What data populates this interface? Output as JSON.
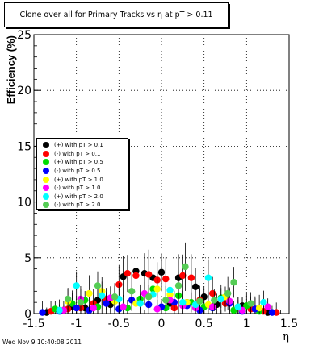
{
  "chart_data": {
    "type": "scatter",
    "title": "Clone  over all for Primary Tracks vs   η at pT > 0.11",
    "xlabel": "η",
    "ylabel": "Efficiency (%)",
    "xlim": [
      -1.5,
      1.5
    ],
    "ylim": [
      0,
      25
    ],
    "xticks": [
      "-1.5",
      "-1",
      "-0.5",
      "0",
      "0.5",
      "1",
      "1.5"
    ],
    "yticks": [
      "0",
      "5",
      "10",
      "15",
      "20",
      "25"
    ],
    "grid": true,
    "legend_position": "left",
    "series": [
      {
        "name": "(+) with pT > 0.1",
        "color": "#000000",
        "x": [
          -1.35,
          -1.15,
          -1.05,
          -0.9,
          -0.75,
          -0.6,
          -0.45,
          -0.3,
          -0.2,
          -0.1,
          0.0,
          0.1,
          0.2,
          0.3,
          0.4,
          0.5,
          0.65,
          0.8,
          0.95,
          1.1,
          1.25
        ],
        "y": [
          0.1,
          0.3,
          0.6,
          0.5,
          1.2,
          0.8,
          3.3,
          3.8,
          3.6,
          3.2,
          3.7,
          0.9,
          3.2,
          1.0,
          2.4,
          1.5,
          0.8,
          1.0,
          0.7,
          0.4,
          0.1
        ]
      },
      {
        "name": "(-) with pT > 0.1",
        "color": "#ff0000",
        "x": [
          -1.3,
          -1.1,
          -0.95,
          -0.8,
          -0.65,
          -0.5,
          -0.4,
          -0.3,
          -0.15,
          -0.05,
          0.05,
          0.15,
          0.25,
          0.35,
          0.45,
          0.6,
          0.75,
          0.9,
          1.05,
          1.2,
          1.35
        ],
        "y": [
          0.2,
          0.4,
          0.5,
          0.9,
          1.3,
          2.6,
          3.6,
          3.4,
          3.5,
          3.0,
          3.1,
          0.5,
          3.4,
          3.2,
          1.2,
          1.8,
          0.9,
          0.6,
          0.4,
          0.2,
          0.1
        ]
      },
      {
        "name": "(+) with pT > 0.5",
        "color": "#00dd00",
        "x": [
          -1.25,
          -1.05,
          -0.9,
          -0.75,
          -0.55,
          -0.4,
          -0.25,
          -0.1,
          0.05,
          0.2,
          0.35,
          0.5,
          0.7,
          0.85,
          1.0,
          1.15
        ],
        "y": [
          0.4,
          0.9,
          1.2,
          0.6,
          1.1,
          0.5,
          1.3,
          2.2,
          0.5,
          1.6,
          1.0,
          0.6,
          1.4,
          0.3,
          0.7,
          0.2
        ]
      },
      {
        "name": "(-) with pT > 0.5",
        "color": "#0000ff",
        "x": [
          -1.4,
          -1.2,
          -1.0,
          -0.85,
          -0.65,
          -0.5,
          -0.35,
          -0.15,
          0.0,
          0.15,
          0.3,
          0.45,
          0.6,
          0.8,
          0.95,
          1.1,
          1.3
        ],
        "y": [
          0.1,
          0.2,
          0.5,
          0.3,
          0.9,
          0.4,
          1.2,
          0.8,
          0.6,
          1.0,
          0.7,
          0.3,
          0.5,
          0.9,
          0.2,
          0.4,
          0.1
        ]
      },
      {
        "name": "(+) with pT > 1.0",
        "color": "#ffff00",
        "x": [
          -1.1,
          -0.85,
          -0.7,
          -0.55,
          -0.3,
          -0.05,
          0.1,
          0.3,
          0.55,
          0.75,
          0.9,
          1.15
        ],
        "y": [
          1.1,
          1.8,
          2.0,
          1.1,
          0.9,
          2.2,
          1.7,
          1.0,
          0.8,
          1.5,
          0.6,
          0.5
        ]
      },
      {
        "name": "(-) with pT > 1.0",
        "color": "#ff00ff",
        "x": [
          -1.15,
          -0.95,
          -0.8,
          -0.6,
          -0.45,
          -0.2,
          -0.05,
          0.1,
          0.25,
          0.4,
          0.6,
          0.8,
          0.95,
          1.25
        ],
        "y": [
          0.3,
          1.3,
          0.5,
          1.4,
          0.6,
          1.8,
          0.4,
          1.2,
          0.7,
          0.5,
          0.6,
          1.1,
          0.3,
          0.6
        ]
      },
      {
        "name": "(+) with pT > 2.0",
        "color": "#00ffff",
        "x": [
          -1.2,
          -1.0,
          -0.7,
          -0.5,
          -0.25,
          -0.1,
          0.1,
          0.25,
          0.4,
          0.55,
          0.7,
          0.9,
          1.2
        ],
        "y": [
          0.3,
          2.5,
          1.6,
          1.3,
          0.9,
          1.7,
          2.1,
          1.0,
          0.8,
          3.2,
          1.3,
          0.6,
          1.0
        ]
      },
      {
        "name": "(-) with pT > 2.0",
        "color": "#55cc55",
        "x": [
          -1.1,
          -0.95,
          -0.75,
          -0.55,
          -0.35,
          -0.15,
          0.05,
          0.2,
          0.28,
          0.45,
          0.62,
          0.78,
          0.85,
          1.05
        ],
        "y": [
          1.3,
          1.0,
          2.5,
          1.5,
          2.0,
          1.5,
          1.2,
          2.5,
          4.2,
          1.1,
          1.2,
          1.8,
          2.8,
          0.9
        ]
      }
    ]
  },
  "timestamp": "Wed Nov  9 10:40:08 2011"
}
